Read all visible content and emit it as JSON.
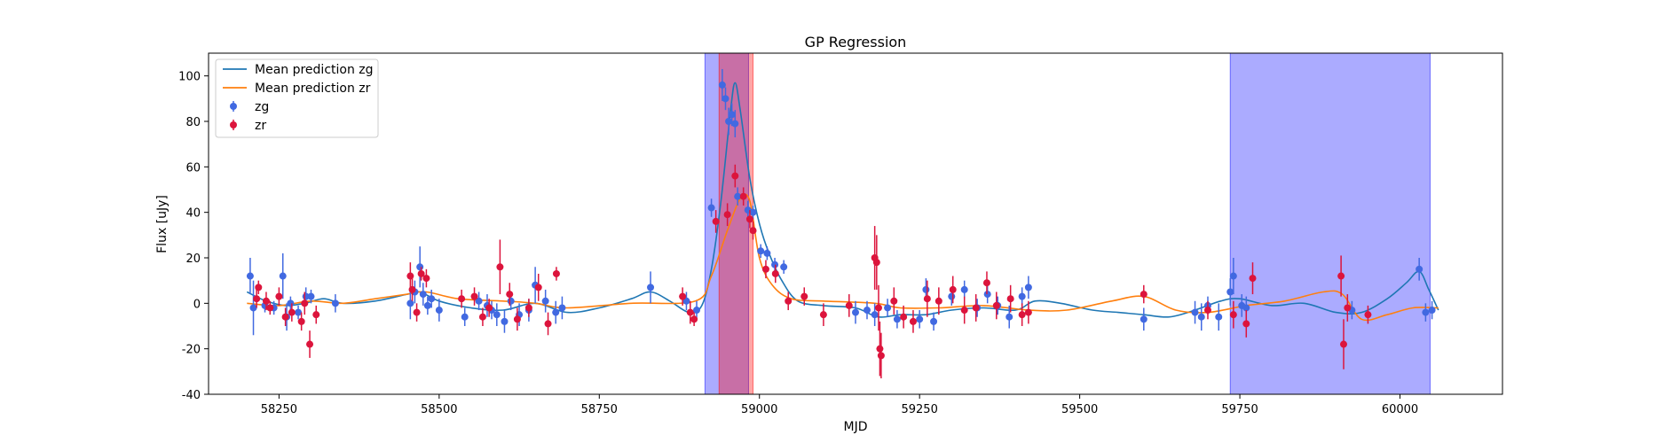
{
  "chart_data": {
    "type": "scatter",
    "title": "GP Regression",
    "xlabel": "MJD",
    "ylabel": "Flux [uJy]",
    "xlim": [
      58140,
      60160
    ],
    "ylim": [
      -40,
      110
    ],
    "xticks": [
      58250,
      58500,
      58750,
      59000,
      59250,
      59500,
      59750,
      60000
    ],
    "yticks": [
      -40,
      -20,
      0,
      20,
      40,
      60,
      80,
      100
    ],
    "grid": false,
    "legend_placement": "top-left",
    "colors": {
      "zg": "#4169e1",
      "zr": "#dc143c",
      "mean_zg": "#1f77b4",
      "mean_zr": "#ff7f0e",
      "span_blue": "#0000ff",
      "span_red": "#ff0000"
    },
    "shaded_regions": [
      {
        "color": "blue",
        "x0": 58915,
        "x1": 58983
      },
      {
        "color": "red",
        "x0": 58937,
        "x1": 58990
      },
      {
        "color": "blue",
        "x0": 59735,
        "x1": 60047
      }
    ],
    "lines": [
      {
        "name": "Mean prediction zg",
        "x": [
          58200,
          58230,
          58260,
          58290,
          58320,
          58350,
          58400,
          58450,
          58470,
          58500,
          58550,
          58600,
          58650,
          58700,
          58750,
          58800,
          58830,
          58860,
          58890,
          58910,
          58925,
          58940,
          58955,
          58962,
          58970,
          58985,
          59000,
          59015,
          59035,
          59060,
          59100,
          59150,
          59185,
          59220,
          59260,
          59300,
          59350,
          59400,
          59430,
          59470,
          59520,
          59560,
          59600,
          59640,
          59680,
          59720,
          59750,
          59800,
          59850,
          59900,
          59940,
          59980,
          60010,
          60030,
          60045,
          60060
        ],
        "y": [
          5,
          1,
          -1,
          0,
          2,
          0,
          1,
          4,
          5,
          1,
          -2,
          -3,
          0,
          -4,
          -2,
          2,
          5,
          1,
          -4,
          -1,
          15,
          45,
          85,
          97,
          85,
          55,
          35,
          22,
          10,
          1,
          -1,
          -2,
          -6,
          -5,
          -5,
          -3,
          -2,
          -3,
          1,
          0,
          -3,
          -4,
          -5,
          -6,
          -3,
          1,
          2,
          -1,
          0,
          -4,
          -4,
          2,
          9,
          14,
          6,
          -3
        ]
      },
      {
        "name": "Mean prediction zr",
        "x": [
          58200,
          58250,
          58300,
          58350,
          58400,
          58450,
          58480,
          58530,
          58600,
          58650,
          58700,
          58800,
          58900,
          58925,
          58950,
          58970,
          58985,
          59000,
          59020,
          59050,
          59100,
          59180,
          59220,
          59280,
          59350,
          59420,
          59480,
          59550,
          59600,
          59650,
          59700,
          59760,
          59820,
          59880,
          59910,
          59940,
          59980,
          60020,
          60060
        ],
        "y": [
          0,
          -1,
          1,
          0,
          2,
          4,
          5,
          2,
          1,
          0,
          -2,
          0,
          1,
          12,
          32,
          46,
          45,
          20,
          8,
          2,
          1,
          0,
          -2,
          -2,
          -1,
          -3,
          -3,
          1,
          3,
          -3,
          -4,
          -1,
          1,
          5,
          4,
          -7,
          -5,
          -2,
          -2
        ]
      }
    ],
    "series": [
      {
        "name": "zg",
        "x": [
          58205,
          58210,
          58228,
          58242,
          58256,
          58262,
          58268,
          58280,
          58292,
          58300,
          58338,
          58455,
          58462,
          58470,
          58475,
          58482,
          58488,
          58500,
          58540,
          58562,
          58575,
          58582,
          58590,
          58602,
          58612,
          58625,
          58640,
          58650,
          58666,
          58682,
          58692,
          58830,
          58886,
          58902,
          58925,
          58942,
          58947,
          58952,
          58957,
          58962,
          58966,
          58982,
          58990,
          59002,
          59012,
          59024,
          59038,
          59150,
          59168,
          59180,
          59200,
          59215,
          59250,
          59260,
          59272,
          59300,
          59320,
          59340,
          59356,
          59372,
          59390,
          59410,
          59420,
          59600,
          59680,
          59690,
          59700,
          59717,
          59735,
          59740,
          59753,
          59760,
          59925,
          60030,
          60040,
          60050
        ],
        "y": [
          12,
          -2,
          -1,
          -2,
          12,
          -6,
          0,
          -4,
          3,
          3,
          0,
          0,
          5,
          16,
          4,
          -1,
          2,
          -3,
          -6,
          1,
          -1,
          -3,
          -5,
          -8,
          1,
          -5,
          -3,
          8,
          1,
          -4,
          -2,
          7,
          1,
          -3,
          42,
          96,
          90,
          80,
          83,
          79,
          47,
          41,
          40,
          23,
          22,
          17,
          16,
          -4,
          -3,
          -5,
          -2,
          -7,
          -7,
          6,
          -8,
          3,
          6,
          -2,
          4,
          -1,
          -6,
          3,
          7,
          -7,
          -4,
          -6,
          -1,
          -6,
          5,
          12,
          -1,
          -2,
          -3,
          15,
          -4,
          -3
        ],
        "err": [
          8,
          12,
          3,
          3,
          10,
          6,
          3,
          3,
          4,
          3,
          4,
          7,
          5,
          9,
          5,
          4,
          4,
          5,
          4,
          4,
          5,
          4,
          5,
          5,
          4,
          5,
          5,
          8,
          5,
          5,
          5,
          7,
          4,
          4,
          4,
          7,
          5,
          6,
          5,
          6,
          4,
          4,
          3,
          3,
          3,
          3,
          3,
          5,
          4,
          5,
          4,
          4,
          4,
          5,
          4,
          4,
          4,
          4,
          4,
          4,
          5,
          4,
          5,
          5,
          5,
          6,
          4,
          6,
          6,
          8,
          5,
          5,
          4,
          5,
          4,
          4
        ]
      },
      {
        "name": "zr",
        "x": [
          58215,
          58218,
          58230,
          58236,
          58250,
          58260,
          58270,
          58285,
          58290,
          58298,
          58308,
          58455,
          58458,
          58465,
          58472,
          58480,
          58535,
          58555,
          58568,
          58578,
          58595,
          58610,
          58622,
          58640,
          58655,
          58670,
          58683,
          58880,
          58892,
          58898,
          58932,
          58950,
          58962,
          58975,
          58985,
          58990,
          59010,
          59025,
          59045,
          59070,
          59100,
          59140,
          59180,
          59183,
          59186,
          59188,
          59190,
          59210,
          59225,
          59240,
          59262,
          59280,
          59302,
          59320,
          59338,
          59355,
          59370,
          59392,
          59410,
          59420,
          59600,
          59700,
          59740,
          59760,
          59770,
          59908,
          59912,
          59918,
          59950
        ],
        "y": [
          2,
          7,
          1,
          -2,
          3,
          -6,
          -4,
          -8,
          0,
          -18,
          -5,
          12,
          6,
          -4,
          13,
          11,
          2,
          3,
          -6,
          -2,
          16,
          4,
          -7,
          -2,
          7,
          -9,
          13,
          3,
          -4,
          -7,
          36,
          39,
          56,
          47,
          37,
          32,
          15,
          13,
          1,
          3,
          -5,
          -1,
          20,
          18,
          -2,
          -20,
          -23,
          1,
          -6,
          -8,
          2,
          1,
          6,
          -3,
          -2,
          9,
          -1,
          2,
          -5,
          -4,
          4,
          -3,
          -5,
          -9,
          11,
          12,
          -18,
          -2,
          -5
        ],
        "err": [
          4,
          3,
          4,
          3,
          4,
          4,
          4,
          4,
          5,
          6,
          4,
          6,
          5,
          4,
          3,
          4,
          4,
          4,
          4,
          4,
          12,
          5,
          5,
          4,
          6,
          5,
          3,
          4,
          5,
          3,
          5,
          5,
          5,
          4,
          4,
          4,
          4,
          4,
          4,
          4,
          5,
          5,
          14,
          12,
          10,
          12,
          10,
          6,
          5,
          5,
          8,
          6,
          6,
          6,
          6,
          5,
          6,
          6,
          5,
          5,
          4,
          4,
          6,
          6,
          7,
          9,
          11,
          6,
          4
        ]
      }
    ]
  }
}
